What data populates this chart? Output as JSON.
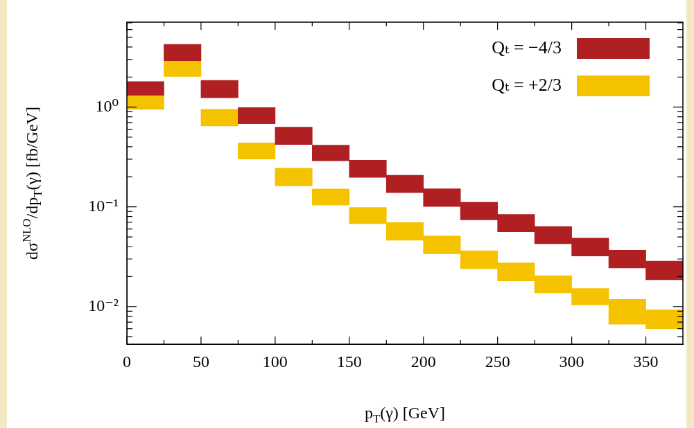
{
  "chart_data": {
    "type": "bar",
    "xlabel": "p$_{T}$(γ) [GeV]",
    "ylabel": "dσ$^{NLO}$/dp$_{T}$(γ) [fb/GeV]",
    "x": [
      12.5,
      37.5,
      62.5,
      87.5,
      112.5,
      137.5,
      162.5,
      187.5,
      212.5,
      237.5,
      262.5,
      287.5,
      312.5,
      337.5,
      362.5
    ],
    "series": [
      {
        "name": "Qₜ = −4/3",
        "color": "#b01f22",
        "base": [
          1.31,
          2.9,
          1.24,
          0.68,
          0.422,
          0.289,
          0.197,
          0.139,
          0.101,
          0.0742,
          0.0562,
          0.0427,
          0.0321,
          0.0244,
          0.0186
        ],
        "values": [
          0.49,
          1.36,
          0.61,
          0.31,
          0.207,
          0.126,
          0.097,
          0.068,
          0.051,
          0.0368,
          0.0277,
          0.0209,
          0.0164,
          0.0123,
          0.01
        ]
      },
      {
        "name": "Qₜ = +2/3",
        "color": "#f5c200",
        "base": [
          0.95,
          2.03,
          0.646,
          0.301,
          0.162,
          0.104,
          0.0678,
          0.0462,
          0.0339,
          0.024,
          0.0181,
          0.0137,
          0.0104,
          0.00667,
          0.006
        ],
        "values": [
          0.34,
          0.83,
          0.304,
          0.137,
          0.082,
          0.047,
          0.0306,
          0.0234,
          0.0171,
          0.0123,
          0.0093,
          0.0067,
          0.0048,
          0.00513,
          0.0033
        ]
      }
    ],
    "xlim": [
      0,
      375
    ],
    "xticks": [
      0,
      {
        "value": 25,
        "label": null
      },
      50,
      {
        "value": 75,
        "label": null
      },
      100,
      {
        "value": 125,
        "label": null
      },
      150,
      {
        "value": 175,
        "label": null
      },
      200,
      {
        "value": 225,
        "label": null
      },
      250,
      {
        "value": 275,
        "label": null
      },
      300,
      {
        "value": 325,
        "label": null
      },
      350
    ],
    "ylim": [
      0.0042,
      7.1
    ],
    "log": "y",
    "yticks": [
      {
        "value": 0.005,
        "label": null
      },
      {
        "value": 0.006,
        "label": null
      },
      {
        "value": 0.007,
        "label": null
      },
      {
        "value": 0.008,
        "label": null
      },
      {
        "value": 0.009,
        "label": null
      },
      {
        "value": 0.01,
        "label": "10⁻²"
      },
      {
        "value": 0.02,
        "label": null
      },
      {
        "value": 0.03,
        "label": null
      },
      {
        "value": 0.04,
        "label": null
      },
      {
        "value": 0.05,
        "label": null
      },
      {
        "value": 0.06,
        "label": null
      },
      {
        "value": 0.07,
        "label": null
      },
      {
        "value": 0.08,
        "label": null
      },
      {
        "value": 0.09,
        "label": null
      },
      {
        "value": 0.1,
        "label": "10⁻¹"
      },
      {
        "value": 0.2,
        "label": null
      },
      {
        "value": 0.3,
        "label": null
      },
      {
        "value": 0.4,
        "label": null
      },
      {
        "value": 0.5,
        "label": null
      },
      {
        "value": 0.6,
        "label": null
      },
      {
        "value": 0.7,
        "label": null
      },
      {
        "value": 0.8,
        "label": null
      },
      {
        "value": 0.9,
        "label": null
      },
      {
        "value": 1,
        "label": "10⁰"
      },
      {
        "value": 2,
        "label": null
      },
      {
        "value": 3,
        "label": null
      },
      {
        "value": 4,
        "label": null
      },
      {
        "value": 5,
        "label": null
      },
      {
        "value": 6,
        "label": null
      },
      {
        "value": 7,
        "label": null
      }
    ],
    "legend": "top right",
    "grid": false
  }
}
